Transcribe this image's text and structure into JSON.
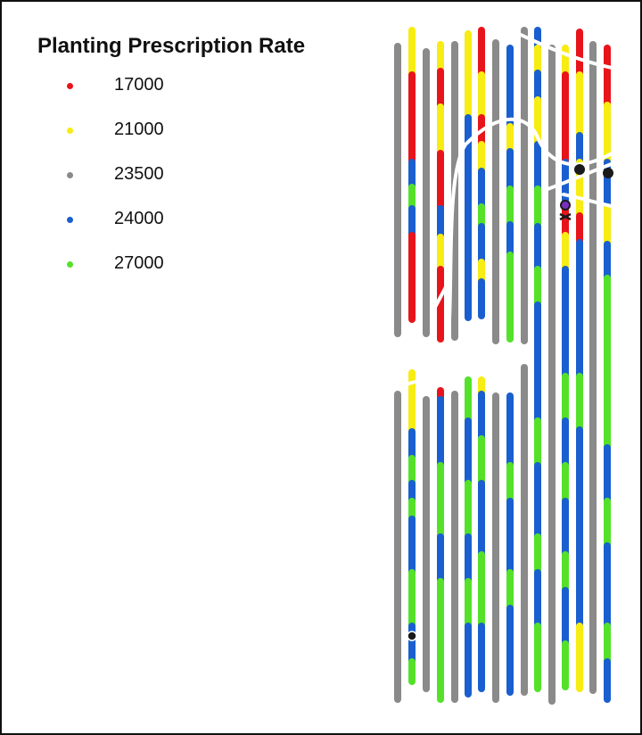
{
  "legend": {
    "title": "Planting Prescription Rate",
    "items": [
      {
        "label": "17000",
        "color": "#e8141b"
      },
      {
        "label": "21000",
        "color": "#f7ec13"
      },
      {
        "label": "23500",
        "color": "#8a8a8a"
      },
      {
        "label": "24000",
        "color": "#1a5fcf"
      },
      {
        "label": "27000",
        "color": "#55e12a"
      }
    ]
  }
}
